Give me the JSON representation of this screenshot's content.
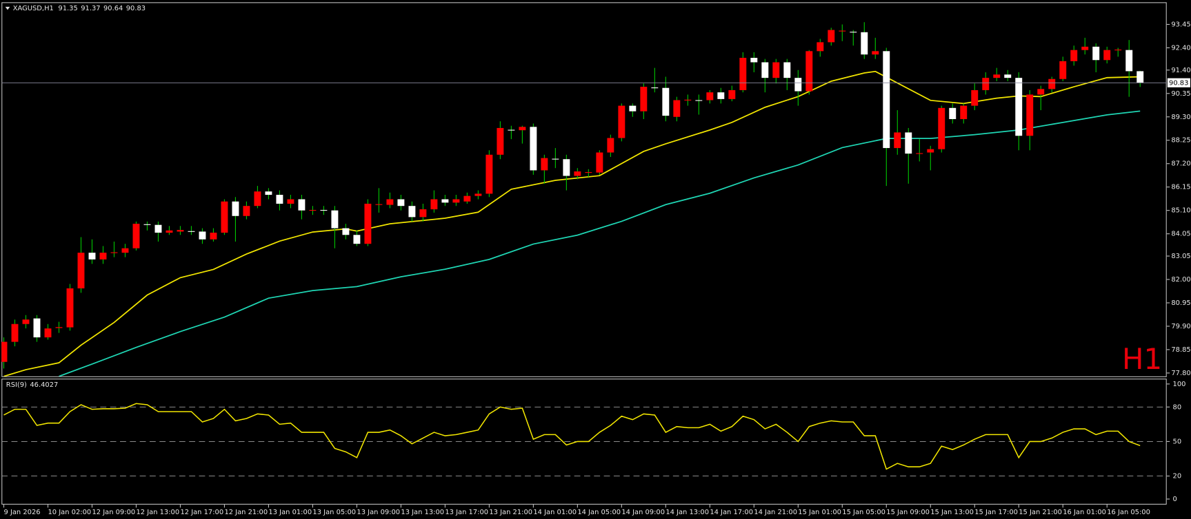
{
  "chart_data": [
    {
      "type": "candlestick",
      "title": "XAGUSD,H1",
      "annotation": "H1",
      "categories": [
        "9 Jan 2026",
        null,
        null,
        null,
        "10 Jan 02:00",
        null,
        null,
        null,
        "12 Jan 09:00",
        null,
        null,
        null,
        "12 Jan 13:00",
        null,
        null,
        null,
        "12 Jan 17:00",
        null,
        null,
        null,
        "12 Jan 21:00",
        null,
        null,
        null,
        "13 Jan 01:00",
        null,
        null,
        null,
        "13 Jan 05:00",
        null,
        null,
        null,
        "13 Jan 09:00",
        null,
        null,
        null,
        "13 Jan 13:00",
        null,
        null,
        null,
        "13 Jan 17:00",
        null,
        null,
        null,
        "13 Jan 21:00",
        null,
        null,
        null,
        "14 Jan 01:00",
        null,
        null,
        null,
        "14 Jan 05:00",
        null,
        null,
        null,
        "14 Jan 09:00",
        null,
        null,
        null,
        "14 Jan 13:00",
        null,
        null,
        null,
        "14 Jan 17:00",
        null,
        null,
        null,
        "14 Jan 21:00",
        null,
        null,
        null,
        "15 Jan 01:00",
        null,
        null,
        null,
        "15 Jan 05:00",
        null,
        null,
        null,
        "15 Jan 09:00",
        null,
        null,
        null,
        "15 Jan 13:00",
        null,
        null,
        null,
        "15 Jan 17:00",
        null,
        null,
        null,
        "15 Jan 21:00",
        null,
        null,
        null,
        "16 Jan 01:00",
        null,
        null,
        null,
        "16 Jan 05:00",
        null,
        null,
        null
      ],
      "open": [
        78.3,
        79.2,
        80.0,
        80.25,
        79.4,
        79.82,
        79.85,
        81.6,
        83.2,
        82.9,
        83.2,
        83.2,
        83.4,
        84.48,
        84.45,
        84.1,
        84.15,
        84.17,
        84.15,
        83.8,
        84.1,
        85.5,
        84.85,
        85.3,
        85.95,
        85.8,
        85.4,
        85.6,
        85.1,
        85.12,
        85.1,
        84.3,
        84.0,
        83.6,
        85.36,
        85.35,
        85.6,
        85.3,
        84.8,
        85.15,
        85.6,
        85.45,
        85.5,
        85.75,
        85.85,
        87.6,
        88.72,
        88.7,
        88.85,
        86.9,
        87.42,
        87.4,
        86.65,
        86.8,
        86.8,
        87.7,
        88.35,
        89.8,
        89.55,
        90.62,
        90.6,
        89.3,
        90.05,
        90.05,
        90.05,
        90.4,
        90.1,
        90.5,
        91.95,
        91.75,
        91.05,
        91.75,
        91.05,
        90.45,
        92.25,
        92.65,
        93.15,
        93.12,
        93.1,
        92.1,
        92.25,
        87.9,
        88.6,
        87.65,
        87.7,
        87.85,
        89.7,
        89.2,
        89.8,
        90.5,
        91.05,
        91.2,
        91.05,
        88.45,
        90.3,
        90.55,
        91.0,
        91.8,
        92.3,
        92.45,
        91.85,
        92.3,
        92.3,
        91.35
      ],
      "high": [
        79.4,
        80.2,
        80.4,
        80.4,
        80.0,
        80.1,
        81.8,
        83.9,
        83.8,
        83.5,
        83.7,
        83.6,
        84.6,
        84.6,
        84.6,
        84.4,
        84.4,
        84.4,
        84.3,
        84.3,
        85.6,
        85.7,
        85.5,
        86.2,
        86.1,
        86.0,
        85.8,
        85.8,
        85.3,
        85.3,
        85.3,
        84.5,
        84.2,
        85.6,
        86.1,
        85.9,
        85.8,
        85.5,
        85.4,
        86.0,
        85.8,
        85.8,
        85.9,
        86.0,
        87.8,
        89.1,
        88.9,
        88.9,
        89.0,
        87.6,
        87.9,
        87.6,
        87.0,
        86.95,
        87.8,
        88.5,
        89.9,
        89.9,
        90.8,
        91.5,
        91.1,
        90.2,
        90.3,
        90.3,
        90.5,
        90.6,
        90.7,
        92.2,
        92.2,
        91.9,
        91.9,
        91.9,
        91.4,
        92.3,
        92.8,
        93.3,
        93.45,
        93.2,
        93.55,
        92.85,
        92.4,
        89.6,
        88.8,
        88.3,
        88.0,
        89.8,
        89.9,
        89.9,
        90.8,
        91.3,
        91.5,
        91.4,
        91.3,
        90.5,
        90.7,
        91.1,
        92.0,
        92.5,
        92.85,
        92.6,
        92.45,
        92.4,
        92.75,
        91.37
      ],
      "low": [
        78.0,
        79.0,
        79.8,
        79.2,
        79.3,
        79.6,
        79.7,
        81.4,
        82.7,
        82.7,
        83.0,
        83.0,
        83.3,
        84.2,
        83.7,
        84.0,
        84.0,
        84.0,
        83.6,
        83.7,
        84.0,
        83.7,
        84.7,
        85.2,
        85.6,
        85.1,
        85.2,
        84.7,
        84.9,
        84.9,
        83.4,
        83.8,
        83.5,
        83.5,
        85.0,
        85.2,
        85.1,
        84.6,
        84.6,
        85.0,
        85.3,
        85.3,
        85.4,
        85.6,
        85.7,
        87.4,
        88.3,
        88.1,
        86.7,
        86.3,
        87.0,
        86.0,
        86.5,
        86.6,
        86.7,
        87.5,
        88.2,
        89.3,
        89.2,
        90.4,
        89.1,
        89.1,
        89.8,
        89.4,
        89.9,
        89.9,
        90.0,
        90.4,
        91.3,
        90.4,
        90.8,
        90.5,
        89.8,
        90.3,
        92.0,
        92.5,
        92.7,
        92.5,
        91.9,
        91.9,
        86.2,
        87.6,
        86.3,
        87.3,
        86.9,
        87.7,
        89.0,
        89.0,
        89.6,
        90.3,
        90.9,
        90.9,
        87.8,
        87.8,
        89.6,
        90.4,
        90.9,
        91.6,
        92.1,
        91.3,
        91.7,
        92.0,
        90.2,
        90.64
      ],
      "close": [
        79.2,
        80.0,
        80.2,
        79.4,
        79.8,
        79.86,
        81.6,
        83.2,
        82.9,
        83.2,
        83.22,
        83.4,
        84.5,
        84.45,
        84.1,
        84.2,
        84.22,
        84.15,
        83.8,
        84.1,
        85.5,
        84.85,
        85.3,
        85.95,
        85.8,
        85.4,
        85.6,
        85.1,
        85.12,
        85.1,
        84.3,
        84.0,
        83.6,
        85.4,
        85.38,
        85.6,
        85.3,
        84.8,
        85.15,
        85.6,
        85.45,
        85.6,
        85.75,
        85.85,
        87.6,
        88.8,
        88.7,
        88.85,
        86.9,
        87.45,
        87.4,
        86.65,
        86.85,
        86.82,
        87.7,
        88.35,
        89.8,
        89.55,
        90.65,
        90.6,
        89.35,
        90.05,
        90.07,
        90.03,
        90.4,
        90.1,
        90.5,
        91.95,
        91.75,
        91.05,
        91.75,
        91.05,
        90.45,
        92.25,
        92.65,
        93.2,
        93.17,
        93.1,
        92.1,
        92.25,
        87.9,
        88.6,
        87.65,
        87.67,
        87.85,
        89.7,
        89.2,
        89.8,
        90.5,
        91.05,
        91.2,
        91.05,
        88.45,
        90.3,
        90.55,
        91.0,
        91.8,
        92.3,
        92.45,
        91.85,
        92.3,
        92.32,
        91.35,
        90.83
      ],
      "bull_color": "#ff0000",
      "bear_color": "#ffffff",
      "wick_color": "#00c800",
      "series": [
        {
          "color": "#f2e600",
          "x": [
            0,
            2,
            5,
            7,
            10,
            13,
            16,
            19,
            22,
            25,
            28,
            31,
            32,
            35,
            40,
            43,
            46,
            50,
            54,
            58,
            60,
            64,
            66,
            69,
            72,
            75,
            78,
            79,
            81,
            84,
            87,
            90,
            92,
            94,
            97,
            100,
            103
          ],
          "values": [
            77.65,
            77.95,
            78.26,
            79.05,
            80.07,
            81.3,
            82.08,
            82.45,
            83.14,
            83.72,
            84.13,
            84.27,
            84.17,
            84.5,
            84.75,
            85.02,
            86.05,
            86.45,
            86.66,
            87.75,
            88.09,
            88.71,
            89.05,
            89.73,
            90.21,
            90.9,
            91.27,
            91.34,
            90.82,
            90.04,
            89.9,
            90.14,
            90.24,
            90.21,
            90.65,
            91.06,
            91.1
          ]
        },
        {
          "color": "#1fd6b4",
          "x": [
            5,
            8,
            12,
            16,
            20,
            24,
            28,
            32,
            36,
            40,
            44,
            48,
            52,
            56,
            60,
            64,
            68,
            72,
            76,
            80,
            84,
            88,
            92,
            96,
            100,
            103
          ],
          "values": [
            77.65,
            78.2,
            78.95,
            79.66,
            80.31,
            81.16,
            81.5,
            81.68,
            82.12,
            82.46,
            82.9,
            83.59,
            83.99,
            84.61,
            85.36,
            85.87,
            86.56,
            87.14,
            87.92,
            88.33,
            88.33,
            88.5,
            88.71,
            89.05,
            89.39,
            89.56
          ]
        }
      ],
      "ylim": [
        77.65,
        94.41
      ],
      "yticks": [
        93.45,
        {
          "value": 92.4,
          "label": "92.40"
        },
        {
          "value": 91.4,
          "label": "91.40"
        },
        90.35,
        {
          "value": 89.3,
          "label": "89.30"
        },
        88.25,
        {
          "value": 87.2,
          "label": "87.20"
        },
        86.15,
        {
          "value": 85.1,
          "label": "85.10"
        },
        84.05,
        83.05,
        {
          "value": 82.0,
          "label": "82.00"
        },
        80.95,
        {
          "value": 79.9,
          "label": "79.90"
        },
        78.85,
        {
          "value": 77.8,
          "label": "77.80"
        }
      ]
    },
    {
      "type": "line",
      "name": "RSI(9)",
      "color": "#f2e600",
      "values": [
        73,
        78,
        78,
        64,
        66,
        66,
        76,
        82,
        78,
        78.5,
        78.5,
        79,
        83,
        82,
        76,
        76,
        76,
        76,
        67,
        70,
        78,
        68,
        70,
        74,
        73,
        65,
        66,
        58,
        58,
        58,
        44,
        41,
        36,
        58,
        58,
        60,
        55,
        48,
        53,
        58,
        55,
        56,
        58,
        60,
        74,
        80,
        78,
        79,
        52,
        56,
        56,
        47,
        50,
        50,
        58,
        64,
        72,
        69,
        74,
        73,
        58,
        63,
        62,
        62,
        65,
        59,
        63,
        72,
        69,
        61,
        65,
        58,
        50,
        63,
        66,
        68,
        67,
        67,
        55,
        55,
        26,
        31,
        28,
        28,
        31,
        46,
        43,
        47,
        52,
        56,
        56,
        56,
        36,
        50,
        50,
        53,
        58,
        61,
        61,
        56,
        59,
        59,
        50,
        46.4027
      ],
      "ylim": [
        -3.5,
        104
      ],
      "yticks": [
        100,
        80,
        50,
        20,
        0
      ]
    }
  ]
}
